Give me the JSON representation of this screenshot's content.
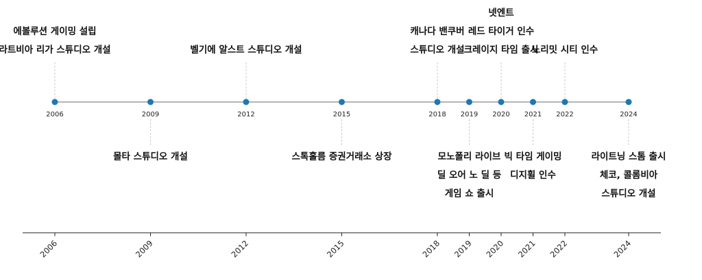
{
  "chart_data": {
    "type": "timeline",
    "title": "",
    "xlabel": "",
    "ylabel": "",
    "xlim": [
      2004.5,
      2025.0
    ],
    "grid": false,
    "legend": "none",
    "colors": {
      "marker": "#1f77b4",
      "line": "#888888",
      "stem": "#cccccc",
      "text": "#111111"
    },
    "events": [
      {
        "year": 2006,
        "position": "above",
        "lines": [
          "에볼루션 게이밍 설립",
          "라트비아 리가 스튜디오 개설"
        ]
      },
      {
        "year": 2009,
        "position": "below",
        "lines": [
          "몰타 스튜디오 개설"
        ]
      },
      {
        "year": 2012,
        "position": "above",
        "lines": [
          "벨기에 알스트 스튜디오 개설"
        ]
      },
      {
        "year": 2015,
        "position": "below",
        "lines": [
          "스톡홀름 증권거래소 상장"
        ]
      },
      {
        "year": 2018,
        "position": "above",
        "lines": [
          "캐나다 밴쿠버",
          "스튜디오 개설"
        ]
      },
      {
        "year": 2019,
        "position": "below",
        "lines": [
          "모노폴리 라이브",
          "딜 오어 노 딜 등",
          "게임 쇼 출시"
        ]
      },
      {
        "year": 2020,
        "position": "above",
        "lines": [
          "넷엔트",
          "레드 타이거 인수",
          "크레이지 타임 출시"
        ]
      },
      {
        "year": 2021,
        "position": "below",
        "lines": [
          "빅 타임 게이밍",
          "디지휠 인수"
        ]
      },
      {
        "year": 2022,
        "position": "above",
        "lines": [
          "노리밋 시티 인수"
        ]
      },
      {
        "year": 2024,
        "position": "below",
        "lines": [
          "라이트닝 스톰 출시",
          "체코, 콜롬비아",
          "스튜디오 개설"
        ]
      }
    ]
  }
}
